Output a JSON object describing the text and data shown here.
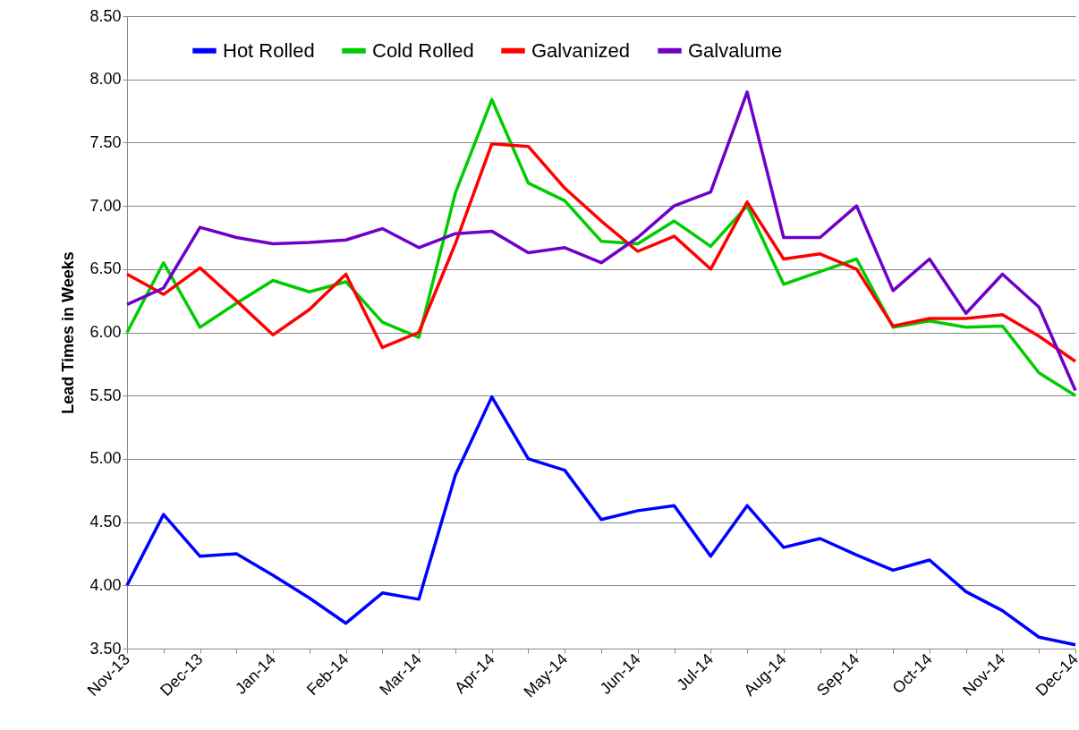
{
  "chart_data": {
    "type": "line",
    "ylabel": "Lead Times in Weeks",
    "categories": [
      "Nov-13",
      null,
      "Dec-13",
      null,
      "Jan-14",
      null,
      "Feb-14",
      null,
      "Mar-14",
      null,
      "Apr-14",
      null,
      "May-14",
      null,
      "Jun-14",
      null,
      "Jul-14",
      null,
      "Aug-14",
      null,
      "Sep-14",
      null,
      "Oct-14",
      null,
      "Nov-14",
      null,
      "Dec-14"
    ],
    "series": [
      {
        "name": "Hot Rolled",
        "color": "#0000ff",
        "values": [
          4.0,
          4.56,
          4.23,
          4.25,
          4.08,
          3.9,
          3.7,
          3.94,
          3.89,
          4.87,
          5.49,
          5.0,
          4.91,
          4.52,
          4.59,
          4.63,
          4.23,
          4.63,
          4.3,
          4.37,
          4.24,
          4.12,
          4.2,
          3.95,
          3.8,
          3.59,
          3.53
        ]
      },
      {
        "name": "Cold Rolled",
        "color": "#00cc00",
        "values": [
          6.0,
          6.55,
          6.04,
          6.23,
          6.41,
          6.32,
          6.4,
          6.08,
          5.96,
          7.1,
          7.84,
          7.18,
          7.04,
          6.72,
          6.7,
          6.88,
          6.68,
          7.0,
          6.38,
          6.48,
          6.58,
          6.04,
          6.09,
          6.04,
          6.05,
          5.68,
          5.5
        ]
      },
      {
        "name": "Galvanized",
        "color": "#ff0000",
        "values": [
          6.46,
          6.3,
          6.51,
          6.25,
          5.98,
          6.18,
          6.46,
          5.88,
          6.0,
          6.7,
          7.49,
          7.47,
          7.14,
          6.88,
          6.64,
          6.76,
          6.5,
          7.03,
          6.58,
          6.62,
          6.5,
          6.05,
          6.11,
          6.11,
          6.14,
          5.97,
          5.77
        ]
      },
      {
        "name": "Galvalume",
        "color": "#7000c8",
        "values": [
          6.22,
          6.35,
          6.83,
          6.75,
          6.7,
          6.71,
          6.73,
          6.82,
          6.67,
          6.78,
          6.8,
          6.63,
          6.67,
          6.55,
          6.75,
          7.0,
          7.11,
          7.9,
          6.75,
          6.75,
          7.0,
          6.33,
          6.58,
          6.15,
          6.46,
          6.2,
          5.54
        ]
      }
    ],
    "ylim": [
      3.5,
      8.5
    ],
    "yticks": [
      {
        "value": 3.5,
        "label": "3.50"
      },
      {
        "value": 4,
        "label": "4.00"
      },
      {
        "value": 4.5,
        "label": "4.50"
      },
      {
        "value": 5,
        "label": "5.00"
      },
      {
        "value": 5.5,
        "label": "5.50"
      },
      {
        "value": 6,
        "label": "6.00"
      },
      {
        "value": 6.5,
        "label": "6.50"
      },
      {
        "value": 7,
        "label": "7.00"
      },
      {
        "value": 7.5,
        "label": "7.50"
      },
      {
        "value": 8,
        "label": "8.00"
      },
      {
        "value": 8.5,
        "label": "8.50"
      }
    ],
    "grid": "y",
    "legend": "top",
    "marker": "none",
    "line_style": "solid"
  }
}
